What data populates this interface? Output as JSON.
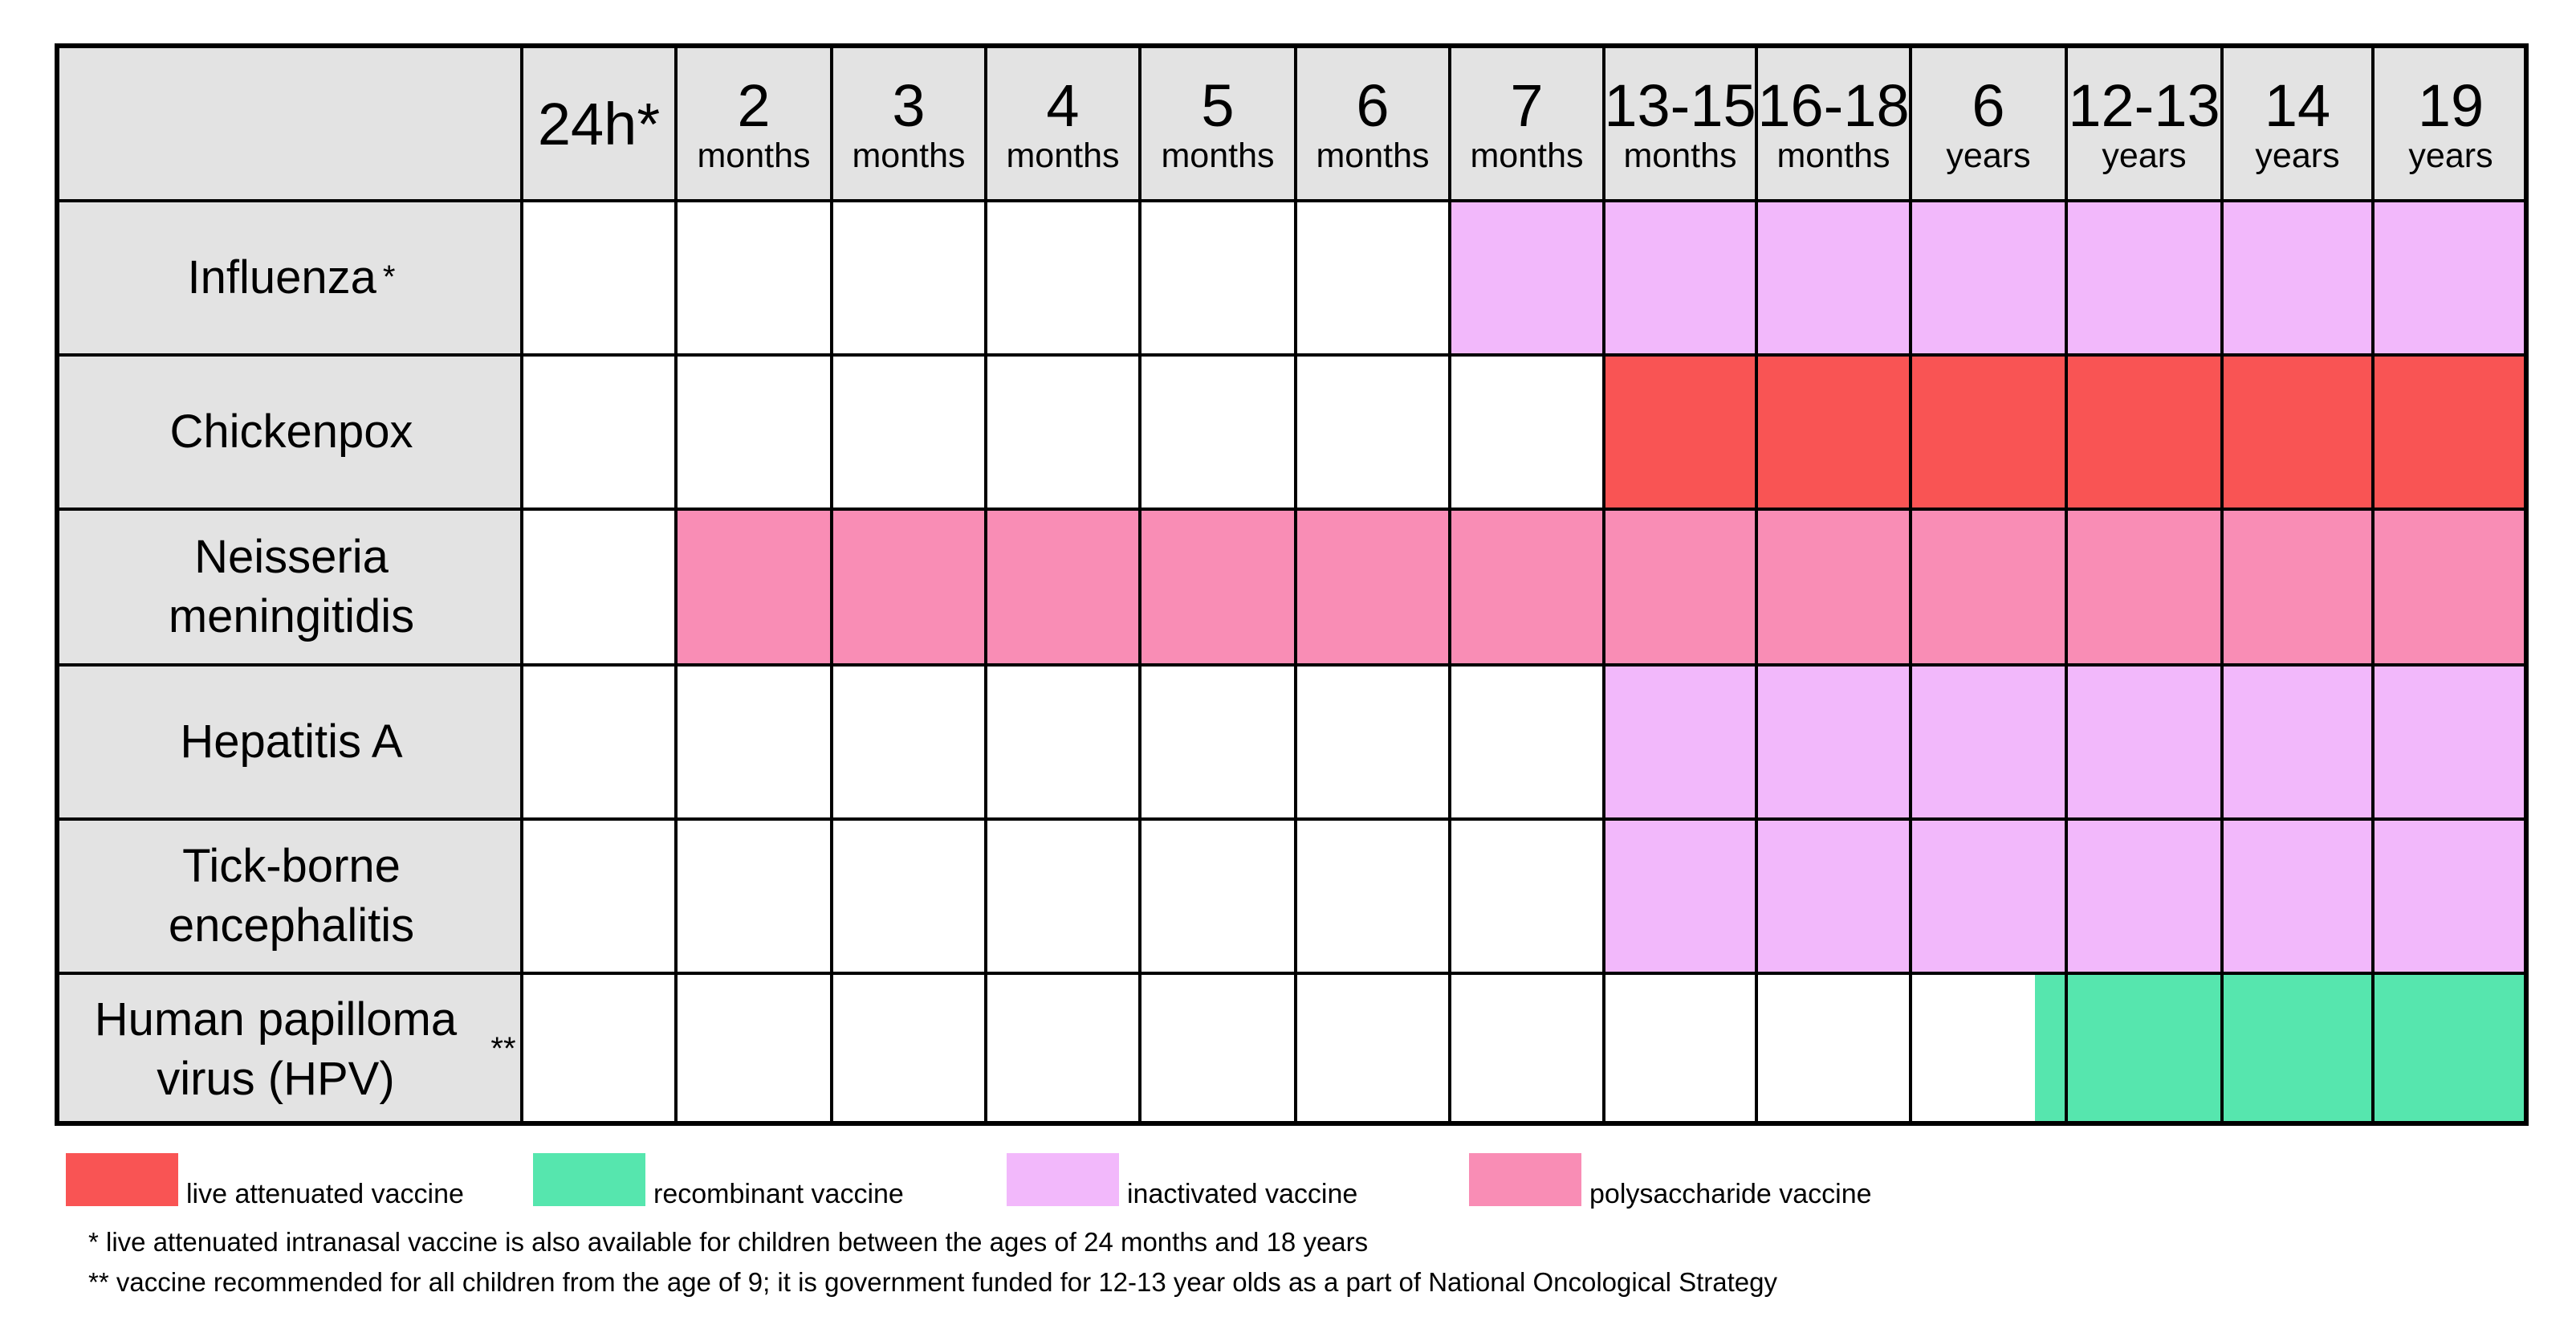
{
  "columns": [
    {
      "num": "24h*",
      "unit": ""
    },
    {
      "num": "2",
      "unit": "months"
    },
    {
      "num": "3",
      "unit": "months"
    },
    {
      "num": "4",
      "unit": "months"
    },
    {
      "num": "5",
      "unit": "months"
    },
    {
      "num": "6",
      "unit": "months"
    },
    {
      "num": "7",
      "unit": "months"
    },
    {
      "num": "13-15",
      "unit": "months"
    },
    {
      "num": "16-18",
      "unit": "months"
    },
    {
      "num": "6",
      "unit": "years"
    },
    {
      "num": "12-13",
      "unit": "years"
    },
    {
      "num": "14",
      "unit": "years"
    },
    {
      "num": "19",
      "unit": "years"
    }
  ],
  "rows": [
    {
      "name": "Influenza",
      "marker": "*",
      "type": "inactivated",
      "from_col": 6,
      "to_col": 12
    },
    {
      "name": "Chickenpox",
      "marker": "",
      "type": "live",
      "from_col": 7,
      "to_col": 12
    },
    {
      "name": "Neisseria meningitidis",
      "marker": "",
      "type": "polysaccharide",
      "from_col": 1,
      "to_col": 12
    },
    {
      "name": "Hepatitis A",
      "marker": "",
      "type": "inactivated",
      "from_col": 7,
      "to_col": 12
    },
    {
      "name": "Tick-borne encephalitis",
      "marker": "",
      "type": "inactivated",
      "from_col": 7,
      "to_col": 12
    },
    {
      "name": "Human papilloma virus (HPV)",
      "marker": "**",
      "type": "recombinant",
      "from_col": 9.8,
      "to_col": 12
    }
  ],
  "vaccine_types": {
    "live": {
      "label": "live attenuated vaccine",
      "color": "#f95454"
    },
    "recombinant": {
      "label": "recombinant vaccine",
      "color": "#56e6ae"
    },
    "inactivated": {
      "label": "inactivated vaccine",
      "color": "#f2b8fb"
    },
    "polysaccharide": {
      "label": "polysaccharide vaccine",
      "color": "#f98db5"
    }
  },
  "legend_order": [
    "live",
    "recombinant",
    "inactivated",
    "polysaccharide"
  ],
  "footnotes": {
    "single_star": "* live attenuated intranasal vaccine is also available for children between the ages of 24 months and 18 years",
    "double_star": "** vaccine recommended for all children from the age of 9; it is government funded for 12-13 year olds as a part of National Oncological Strategy"
  }
}
